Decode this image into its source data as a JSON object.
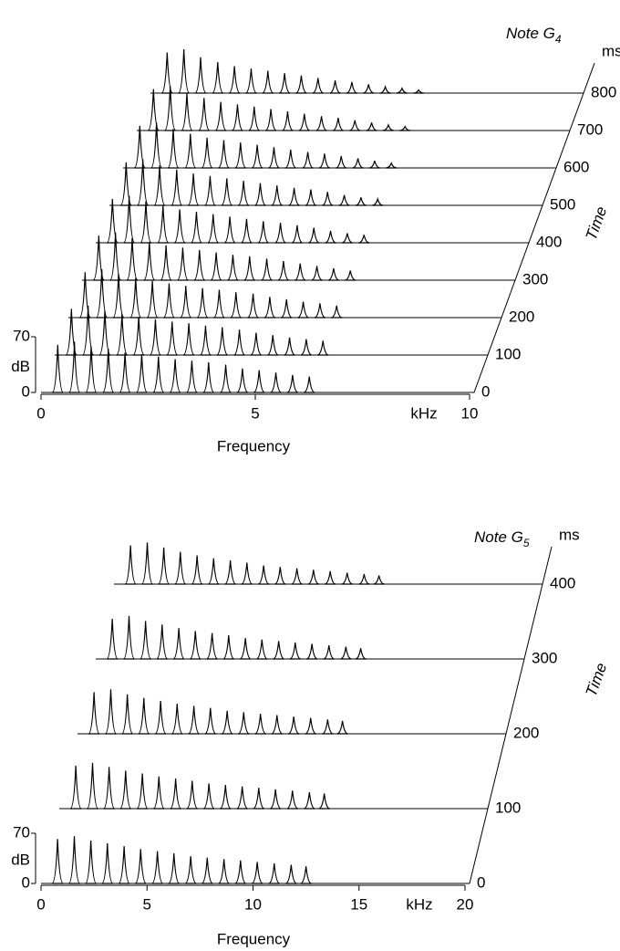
{
  "chart_data": [
    {
      "type": "waterfall",
      "title": "Note G",
      "title_subscript": "4",
      "xlabel": "Frequency",
      "x_unit": "kHz",
      "xlim": [
        0,
        10
      ],
      "xticks": [
        0,
        5,
        10
      ],
      "time_label": "Time",
      "time_unit": "ms",
      "tlim": [
        0,
        880
      ],
      "tticks": [
        0,
        100,
        200,
        300,
        400,
        500,
        600,
        700,
        800
      ],
      "zlabel": "dB",
      "zlim": [
        0,
        70
      ],
      "zticks": [
        0,
        70
      ],
      "x": [
        0.39,
        0.78,
        1.17,
        1.57,
        1.96,
        2.35,
        2.74,
        3.13,
        3.52,
        3.91,
        4.31,
        4.7,
        5.09,
        5.48,
        5.87,
        6.26
      ],
      "times": [
        0,
        100,
        200,
        300,
        400,
        500,
        600,
        700,
        800
      ],
      "values": [
        [
          60,
          64,
          58,
          55,
          50,
          48,
          45,
          42,
          40,
          38,
          35,
          30,
          28,
          25,
          22,
          20
        ],
        [
          58,
          62,
          56,
          52,
          48,
          45,
          42,
          40,
          37,
          35,
          32,
          28,
          25,
          22,
          20,
          18
        ],
        [
          57,
          61,
          55,
          50,
          46,
          43,
          40,
          37,
          35,
          32,
          30,
          26,
          23,
          20,
          18,
          15
        ],
        [
          56,
          60,
          53,
          48,
          44,
          41,
          38,
          35,
          32,
          30,
          27,
          24,
          21,
          18,
          15,
          12
        ],
        [
          55,
          59,
          52,
          47,
          42,
          39,
          36,
          33,
          30,
          27,
          25,
          22,
          19,
          15,
          12,
          10
        ],
        [
          54,
          58,
          50,
          45,
          40,
          37,
          34,
          31,
          28,
          25,
          22,
          20,
          17,
          13,
          10,
          8
        ],
        [
          53,
          57,
          49,
          43,
          38,
          35,
          32,
          29,
          26,
          23,
          20,
          18,
          15,
          12,
          9,
          6
        ],
        [
          52,
          56,
          47,
          41,
          36,
          33,
          30,
          27,
          24,
          21,
          18,
          16,
          13,
          10,
          7,
          5
        ],
        [
          51,
          55,
          45,
          39,
          34,
          31,
          28,
          25,
          22,
          19,
          16,
          14,
          11,
          8,
          6,
          4
        ]
      ]
    },
    {
      "type": "waterfall",
      "title": "Note G",
      "title_subscript": "5",
      "xlabel": "Frequency",
      "x_unit": "kHz",
      "xlim": [
        0,
        20
      ],
      "xticks": [
        0,
        5,
        10,
        15,
        20
      ],
      "time_label": "Time",
      "time_unit": "ms",
      "tlim": [
        0,
        450
      ],
      "tticks": [
        0,
        100,
        200,
        300,
        400
      ],
      "zlabel": "dB",
      "zlim": [
        0,
        70
      ],
      "zticks": [
        0,
        70
      ],
      "x": [
        0.78,
        1.57,
        2.35,
        3.13,
        3.92,
        4.7,
        5.49,
        6.27,
        7.06,
        7.84,
        8.63,
        9.41,
        10.2,
        11.0,
        11.8,
        12.5
      ],
      "times": [
        0,
        100,
        200,
        300,
        400
      ],
      "values": [
        [
          62,
          66,
          60,
          56,
          52,
          48,
          45,
          42,
          38,
          36,
          34,
          32,
          30,
          28,
          26,
          24
        ],
        [
          60,
          64,
          58,
          53,
          49,
          45,
          42,
          39,
          35,
          33,
          31,
          29,
          27,
          25,
          23,
          21
        ],
        [
          58,
          62,
          55,
          50,
          46,
          42,
          39,
          36,
          32,
          30,
          28,
          26,
          24,
          22,
          20,
          18
        ],
        [
          56,
          60,
          53,
          48,
          43,
          39,
          36,
          33,
          29,
          27,
          25,
          23,
          21,
          19,
          17,
          15
        ],
        [
          54,
          58,
          51,
          45,
          40,
          36,
          33,
          30,
          26,
          24,
          22,
          20,
          18,
          16,
          14,
          12
        ]
      ]
    }
  ]
}
